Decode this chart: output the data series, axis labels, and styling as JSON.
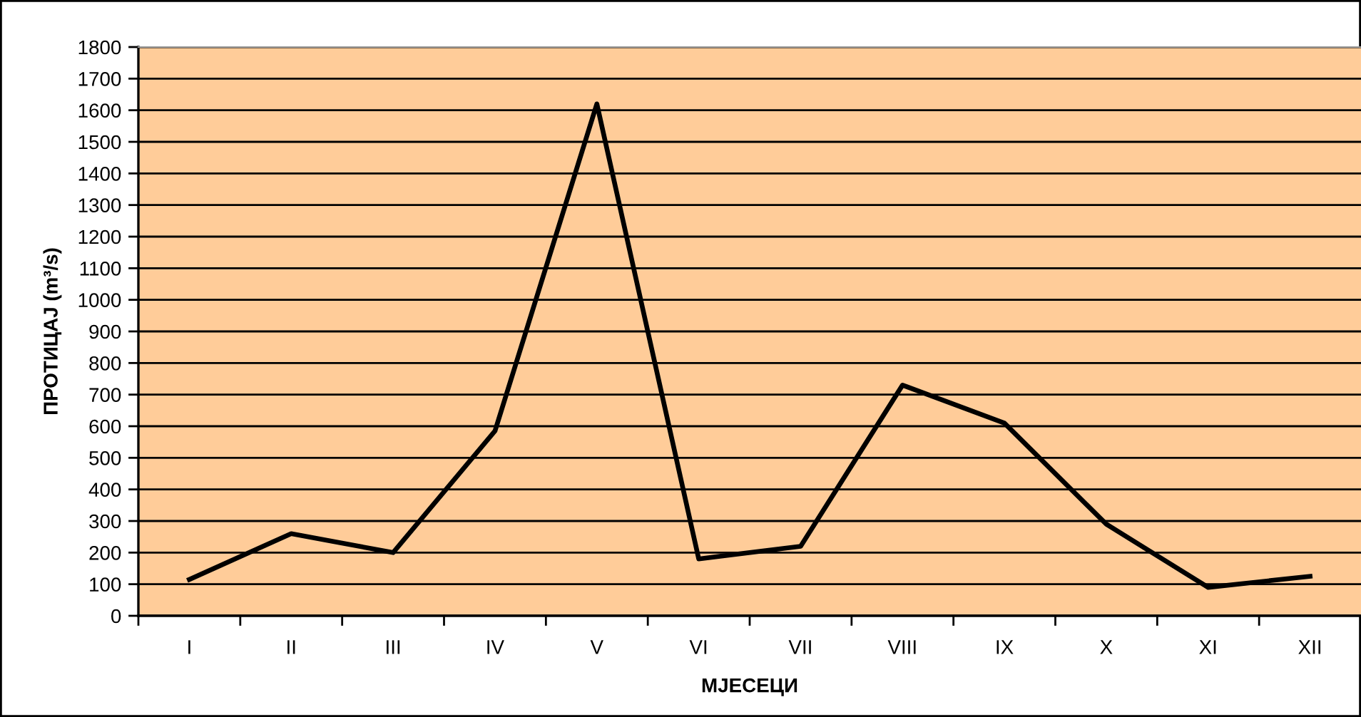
{
  "chart_data": {
    "type": "line",
    "xlabel": "МЈЕСЕЦИ",
    "ylabel": "ПРОТИЦАЈ (m³/s)",
    "categories": [
      "I",
      "II",
      "III",
      "IV",
      "V",
      "VI",
      "VII",
      "VIII",
      "IX",
      "X",
      "XI",
      "XII"
    ],
    "series": [
      {
        "color": "#000000",
        "values": [
          115,
          260,
          200,
          585,
          1620,
          180,
          220,
          730,
          610,
          290,
          90,
          125
        ]
      }
    ],
    "ylim": [
      0,
      1800
    ],
    "yticks": [
      0,
      100,
      200,
      300,
      400,
      500,
      600,
      700,
      800,
      900,
      1000,
      1100,
      1200,
      1300,
      1400,
      1500,
      1600,
      1700,
      1800
    ],
    "grid": "y",
    "legend": false,
    "marker": "none",
    "line_style": "solid"
  }
}
